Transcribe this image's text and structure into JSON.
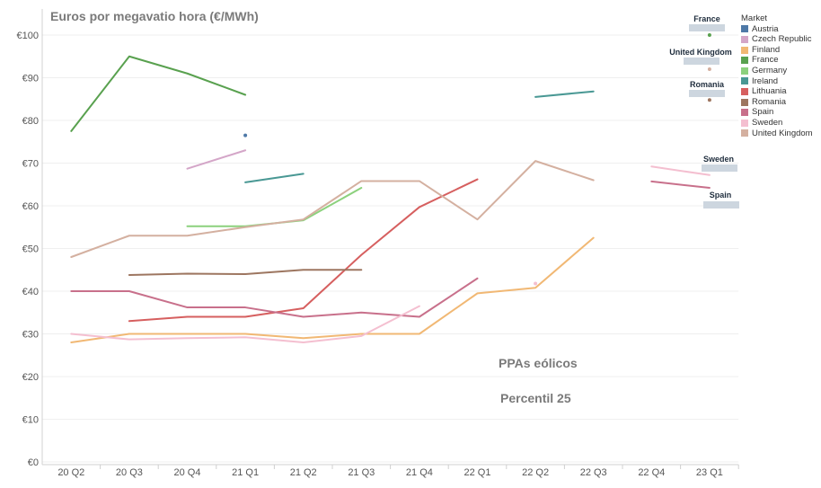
{
  "chart_data": {
    "type": "line",
    "title": "Euros por megavatio hora (€/MWh)",
    "categories": [
      "20 Q2",
      "20 Q3",
      "20 Q4",
      "21 Q1",
      "21 Q2",
      "21 Q3",
      "21 Q4",
      "22 Q1",
      "22 Q2",
      "22 Q3",
      "22 Q4",
      "23 Q1"
    ],
    "y_ticks": [
      "€0",
      "€10",
      "€20",
      "€30",
      "€40",
      "€50",
      "€60",
      "€70",
      "€80",
      "€90",
      "€100"
    ],
    "ylim": [
      0,
      100
    ],
    "legend": {
      "title": "Market",
      "placement": "top-right"
    },
    "series": [
      {
        "name": "Austria",
        "color": "#4e79a7",
        "values": [
          null,
          null,
          null,
          76.5,
          null,
          null,
          null,
          null,
          null,
          null,
          null,
          null
        ]
      },
      {
        "name": "Czech Republic",
        "color": "#d4a6c8",
        "values": [
          null,
          null,
          68.7,
          73,
          null,
          null,
          null,
          null,
          null,
          null,
          null,
          null
        ]
      },
      {
        "name": "Finland",
        "color": "#f1b874",
        "values": [
          28,
          30,
          30,
          30,
          29,
          30,
          30,
          39.5,
          40.8,
          52.5,
          null,
          null
        ]
      },
      {
        "name": "France",
        "color": "#59a14f",
        "values": [
          77.5,
          95,
          91,
          86,
          null,
          null,
          null,
          null,
          null,
          null,
          null,
          100
        ]
      },
      {
        "name": "Germany",
        "color": "#8cd17d",
        "values": [
          null,
          null,
          55.2,
          55.2,
          56.6,
          64.2,
          null,
          null,
          null,
          null,
          null,
          null
        ]
      },
      {
        "name": "Ireland",
        "color": "#499894",
        "values": [
          null,
          null,
          null,
          65.5,
          67.5,
          null,
          null,
          null,
          85.5,
          86.8,
          null,
          null
        ]
      },
      {
        "name": "Lithuania",
        "color": "#d65f5f",
        "values": [
          null,
          33,
          34,
          34,
          36,
          48.5,
          59.7,
          66.2,
          null,
          null,
          null,
          null
        ]
      },
      {
        "name": "Romania",
        "color": "#9d7660",
        "values": [
          null,
          43.8,
          44.1,
          44,
          45,
          45,
          null,
          null,
          null,
          null,
          null,
          84.8
        ]
      },
      {
        "name": "Spain",
        "color": "#c8708b",
        "values": [
          40,
          40,
          36.2,
          36.2,
          34,
          35,
          34,
          43,
          null,
          null,
          65.7,
          64.2
        ]
      },
      {
        "name": "Sweden",
        "color": "#f4bfd0",
        "values": [
          30,
          28.7,
          29,
          29.2,
          28,
          29.5,
          36.5,
          null,
          41.8,
          null,
          69.2,
          67.2
        ]
      },
      {
        "name": "United Kingdom",
        "color": "#d4b0a0",
        "values": [
          48,
          53,
          53,
          55,
          56.8,
          65.8,
          65.8,
          56.8,
          70.5,
          66,
          null,
          92
        ]
      }
    ],
    "end_labels": [
      "France",
      "United Kingdom",
      "Romania",
      "Sweden",
      "Spain"
    ],
    "annotations": [
      "PPAs eólicos",
      "Percentil 25"
    ],
    "grid": true
  }
}
